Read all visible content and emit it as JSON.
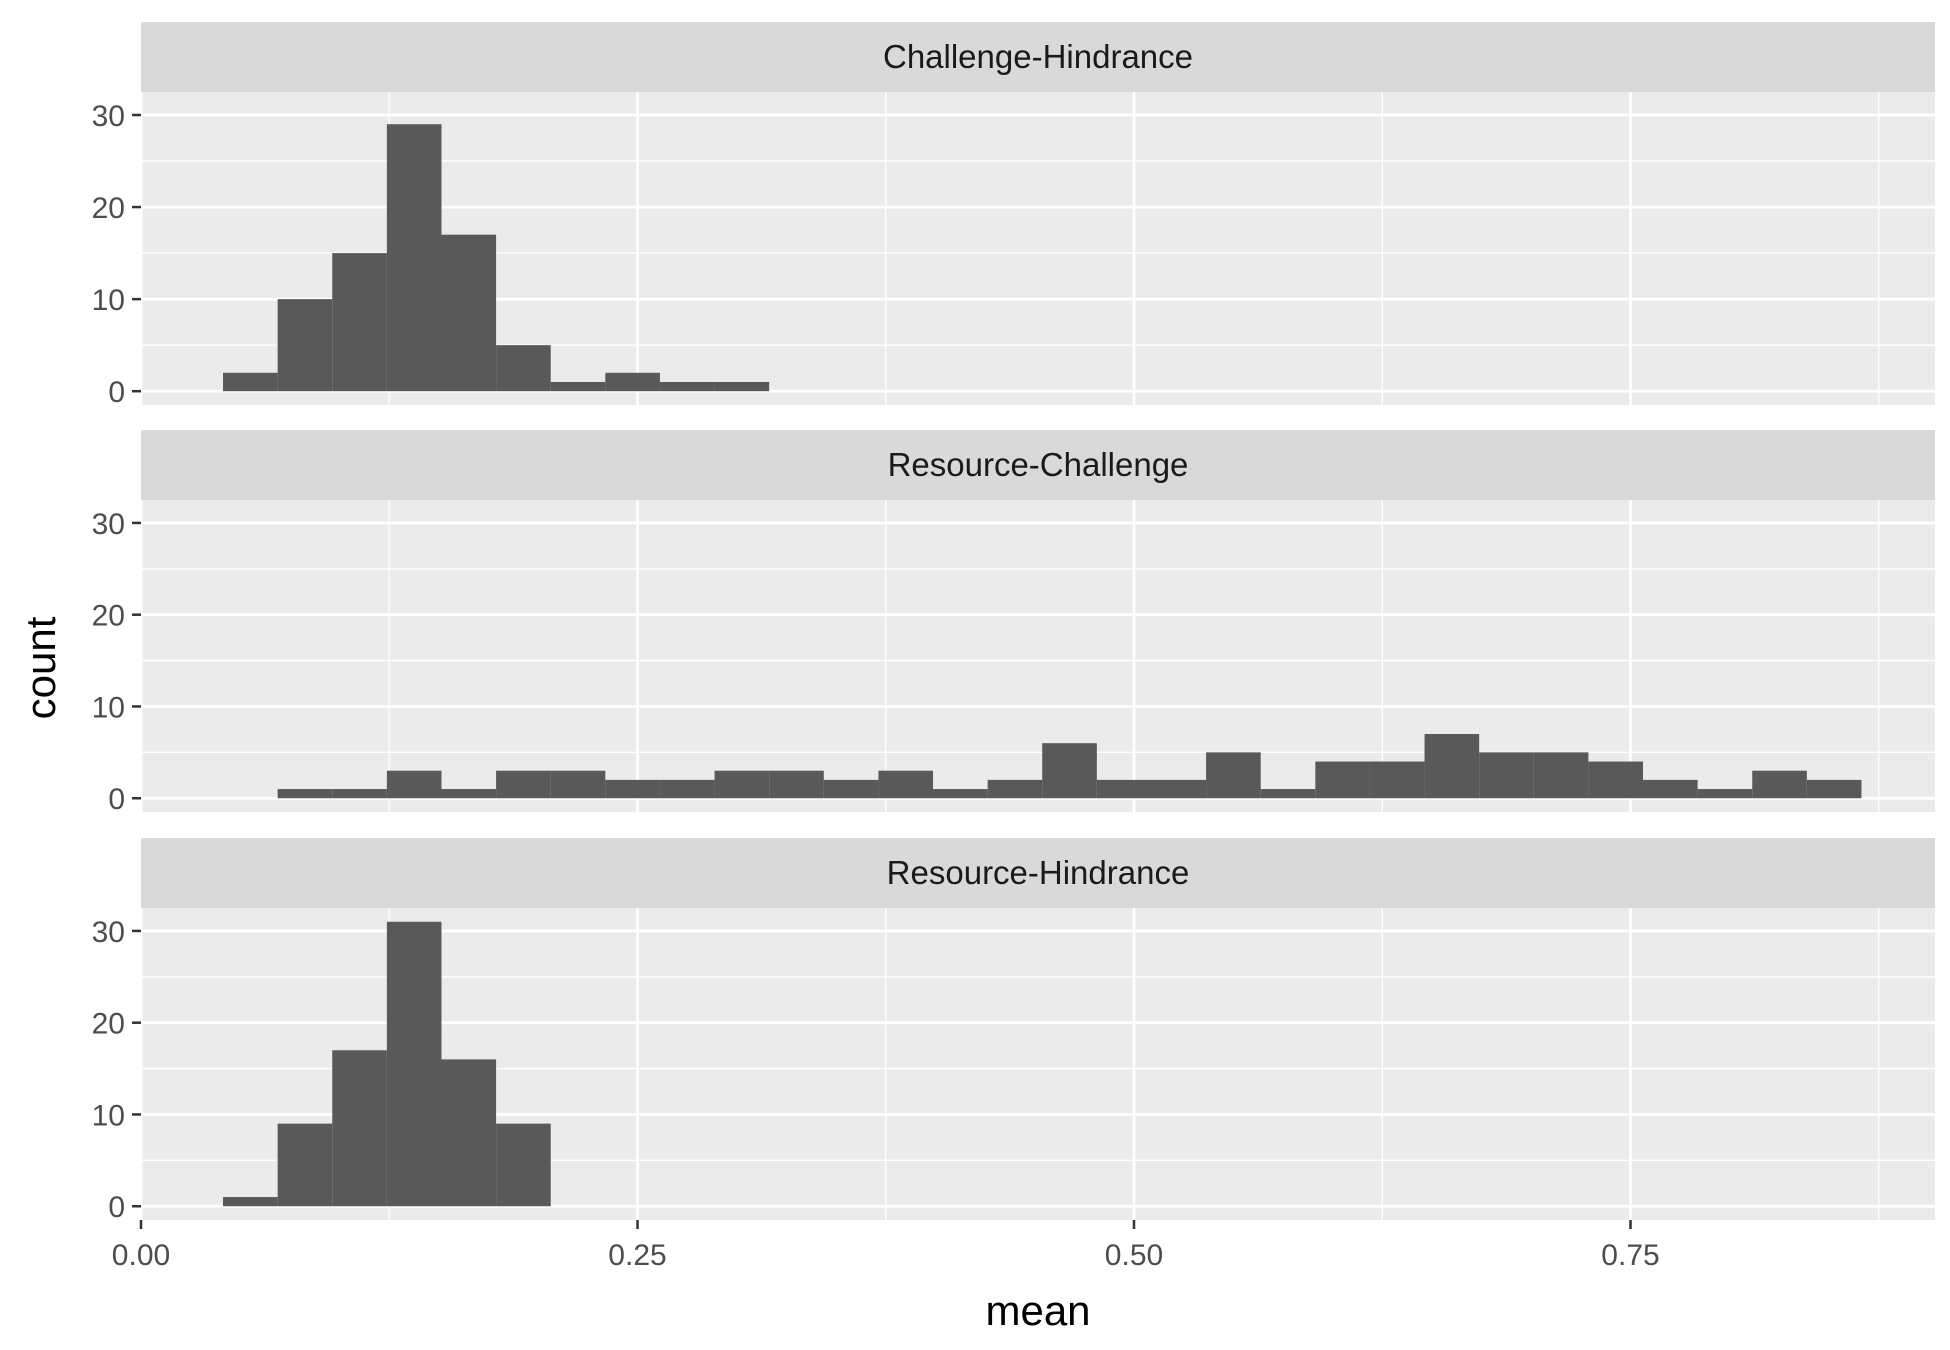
{
  "chart_data": {
    "type": "bar",
    "xlabel": "mean",
    "ylabel": "count",
    "xlim": [
      0,
      0.9
    ],
    "ylim": [
      0,
      31
    ],
    "bin_width": 0.0275,
    "x_ticks": [
      {
        "value": 0.0,
        "label": "0.00"
      },
      {
        "value": 0.25,
        "label": "0.25"
      },
      {
        "value": 0.5,
        "label": "0.50"
      },
      {
        "value": 0.75,
        "label": "0.75"
      }
    ],
    "y_ticks": [
      {
        "value": 0,
        "label": "0"
      },
      {
        "value": 10,
        "label": "10"
      },
      {
        "value": 20,
        "label": "20"
      },
      {
        "value": 30,
        "label": "30"
      }
    ],
    "grid": true,
    "colors": {
      "bar": "#595959",
      "panel": "#ebebeb",
      "strip": "#d9d9d9",
      "grid": "#ffffff"
    },
    "panels": [
      {
        "facet": "Challenge-Hindrance",
        "bins": [
          {
            "x0": 0.0413,
            "count": 2
          },
          {
            "x0": 0.0688,
            "count": 10
          },
          {
            "x0": 0.0963,
            "count": 15
          },
          {
            "x0": 0.1238,
            "count": 29
          },
          {
            "x0": 0.1513,
            "count": 17
          },
          {
            "x0": 0.1788,
            "count": 5
          },
          {
            "x0": 0.2063,
            "count": 1
          },
          {
            "x0": 0.2338,
            "count": 2
          },
          {
            "x0": 0.2613,
            "count": 1
          },
          {
            "x0": 0.2888,
            "count": 1
          }
        ]
      },
      {
        "facet": "Resource-Challenge",
        "bins": [
          {
            "x0": 0.0688,
            "count": 1
          },
          {
            "x0": 0.0963,
            "count": 1
          },
          {
            "x0": 0.1238,
            "count": 3
          },
          {
            "x0": 0.1513,
            "count": 1
          },
          {
            "x0": 0.1788,
            "count": 3
          },
          {
            "x0": 0.2063,
            "count": 3
          },
          {
            "x0": 0.2338,
            "count": 2
          },
          {
            "x0": 0.2613,
            "count": 2
          },
          {
            "x0": 0.2888,
            "count": 3
          },
          {
            "x0": 0.3163,
            "count": 3
          },
          {
            "x0": 0.3438,
            "count": 2
          },
          {
            "x0": 0.3713,
            "count": 3
          },
          {
            "x0": 0.3988,
            "count": 1
          },
          {
            "x0": 0.4263,
            "count": 2
          },
          {
            "x0": 0.4538,
            "count": 6
          },
          {
            "x0": 0.4813,
            "count": 2
          },
          {
            "x0": 0.5088,
            "count": 2
          },
          {
            "x0": 0.5363,
            "count": 5
          },
          {
            "x0": 0.5638,
            "count": 1
          },
          {
            "x0": 0.5913,
            "count": 4
          },
          {
            "x0": 0.6188,
            "count": 4
          },
          {
            "x0": 0.6463,
            "count": 7
          },
          {
            "x0": 0.6738,
            "count": 5
          },
          {
            "x0": 0.7013,
            "count": 5
          },
          {
            "x0": 0.7288,
            "count": 4
          },
          {
            "x0": 0.7563,
            "count": 2
          },
          {
            "x0": 0.7838,
            "count": 1
          },
          {
            "x0": 0.8113,
            "count": 3
          },
          {
            "x0": 0.8388,
            "count": 2
          }
        ]
      },
      {
        "facet": "Resource-Hindrance",
        "bins": [
          {
            "x0": 0.0413,
            "count": 1
          },
          {
            "x0": 0.0688,
            "count": 9
          },
          {
            "x0": 0.0963,
            "count": 17
          },
          {
            "x0": 0.1238,
            "count": 31
          },
          {
            "x0": 0.1513,
            "count": 16
          },
          {
            "x0": 0.1788,
            "count": 9
          }
        ]
      }
    ]
  }
}
